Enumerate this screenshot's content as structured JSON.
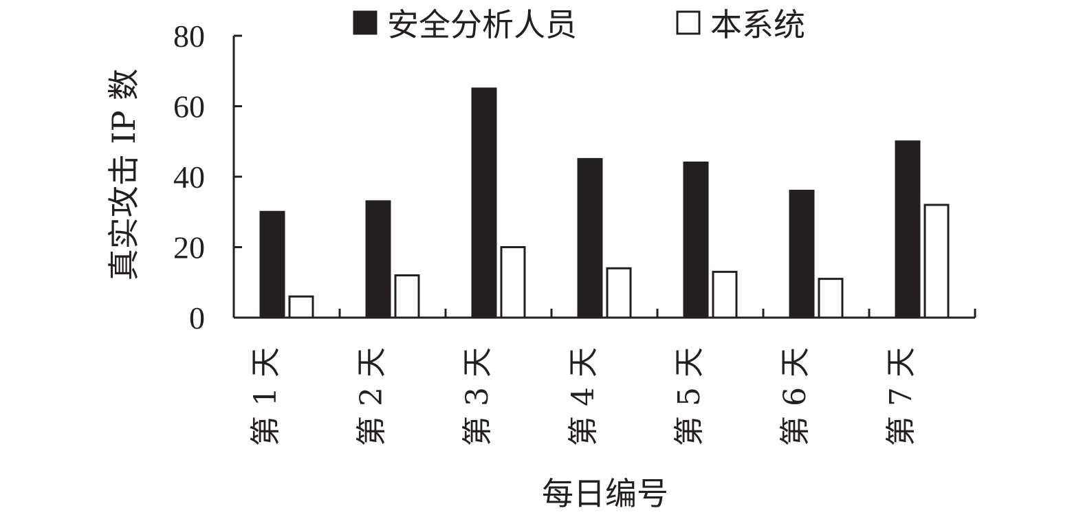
{
  "chart_data": {
    "type": "bar",
    "title": "",
    "xlabel": "每日编号",
    "ylabel": "真实攻击 IP 数",
    "ylim": [
      0,
      80
    ],
    "yticks": [
      0,
      20,
      40,
      60,
      80
    ],
    "categories": [
      "第 1 天",
      "第 2 天",
      "第 3 天",
      "第 4 天",
      "第 5 天",
      "第 6 天",
      "第 7 天"
    ],
    "series": [
      {
        "name": "安全分析人员",
        "color": "#231f20",
        "values": [
          30,
          33,
          65,
          45,
          44,
          36,
          50
        ]
      },
      {
        "name": "本系统",
        "color": "#ffffff",
        "values": [
          6,
          12,
          20,
          14,
          13,
          11,
          32
        ]
      }
    ],
    "grid": false,
    "legend_position": "top"
  }
}
